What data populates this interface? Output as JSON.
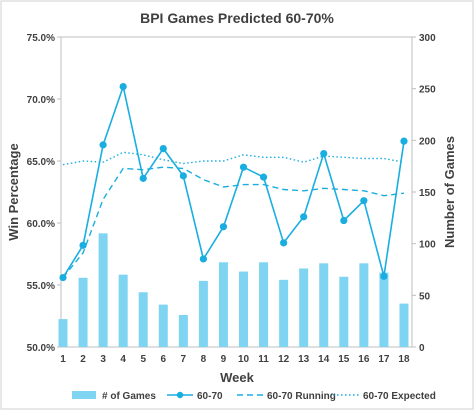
{
  "chart_data": {
    "type": "bar",
    "title": "BPI Games Predicted 60-70%",
    "xlabel": "Week",
    "ylabel_left": "Win Percentage",
    "ylabel_right": "Number of Games",
    "categories": [
      "1",
      "2",
      "3",
      "4",
      "5",
      "6",
      "7",
      "8",
      "9",
      "10",
      "11",
      "12",
      "13",
      "14",
      "15",
      "16",
      "17",
      "18"
    ],
    "ylim_left": [
      50.0,
      75.0
    ],
    "ylim_right": [
      0,
      300
    ],
    "yticks_left": [
      "50.0%",
      "55.0%",
      "60.0%",
      "65.0%",
      "70.0%",
      "75.0%"
    ],
    "yticks_right": [
      "0",
      "50",
      "100",
      "150",
      "200",
      "250",
      "300"
    ],
    "grid": false,
    "legend_position": "bottom",
    "series": [
      {
        "name": "# of Games",
        "kind": "bar",
        "axis": "right",
        "color": "#7fd4f2",
        "values": [
          27,
          67,
          110,
          70,
          53,
          41,
          31,
          64,
          82,
          73,
          82,
          65,
          76,
          81,
          68,
          81,
          72,
          42
        ]
      },
      {
        "name": "60-70",
        "kind": "line-marker",
        "axis": "left",
        "color": "#1aaee0",
        "values": [
          55.6,
          58.2,
          66.3,
          71.0,
          63.6,
          66.0,
          63.8,
          57.1,
          59.7,
          64.5,
          63.7,
          58.4,
          60.5,
          65.6,
          60.2,
          61.8,
          55.7,
          66.6
        ]
      },
      {
        "name": "60-70 Running",
        "kind": "dashed-line",
        "axis": "left",
        "color": "#1aaee0",
        "values": [
          55.6,
          57.6,
          61.9,
          64.4,
          64.3,
          64.5,
          64.4,
          63.5,
          62.9,
          63.1,
          63.1,
          62.7,
          62.6,
          62.8,
          62.7,
          62.6,
          62.2,
          62.4
        ]
      },
      {
        "name": "60-70 Expected",
        "kind": "dotted-line",
        "axis": "left",
        "color": "#1aaee0",
        "values": [
          64.7,
          65.0,
          64.9,
          65.7,
          65.5,
          65.1,
          64.8,
          65.0,
          65.0,
          65.5,
          65.3,
          65.3,
          64.9,
          65.4,
          65.3,
          65.2,
          65.2,
          64.9
        ]
      }
    ]
  }
}
